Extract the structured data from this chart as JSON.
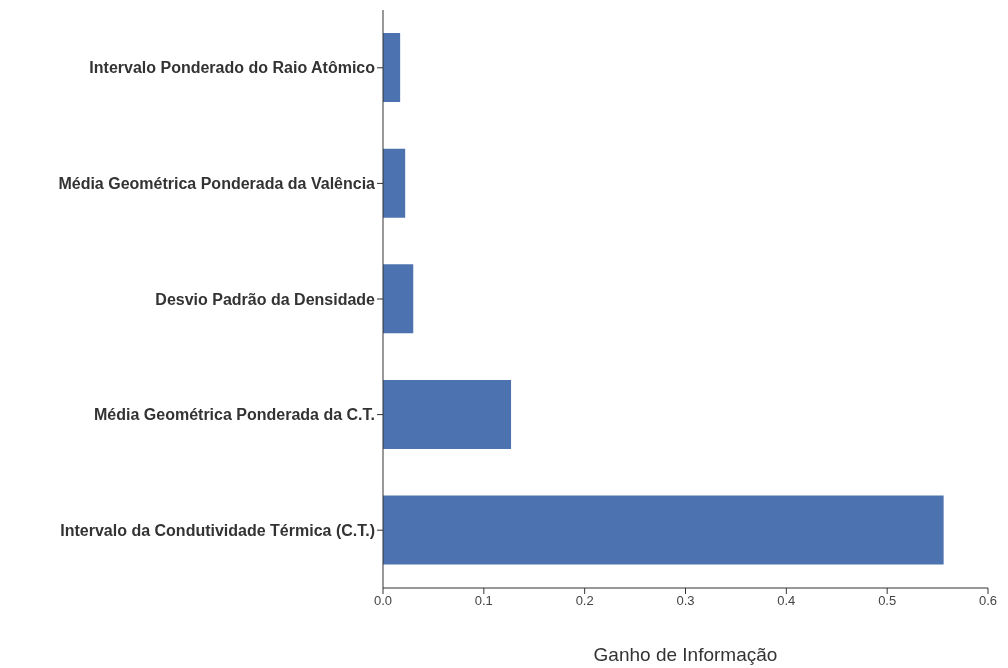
{
  "chart_data": {
    "type": "bar",
    "orientation": "horizontal",
    "xlabel": "Ganho de Informação",
    "categories": [
      "Intervalo Ponderado do Raio Atômico",
      "Média Geométrica Ponderada da Valência",
      "Desvio Padrão da Densidade",
      "Média Geométrica Ponderada da C.T.",
      "Intervalo da Condutividade Térmica (C.T.)"
    ],
    "values": [
      0.017,
      0.022,
      0.03,
      0.127,
      0.556
    ],
    "color": "#4c72b0",
    "xlim": [
      0,
      0.6
    ],
    "xticks": [
      {
        "value": 0,
        "label": "0.0"
      },
      0.1,
      0.2,
      0.3,
      0.4,
      0.5,
      0.6
    ],
    "grid": false
  }
}
